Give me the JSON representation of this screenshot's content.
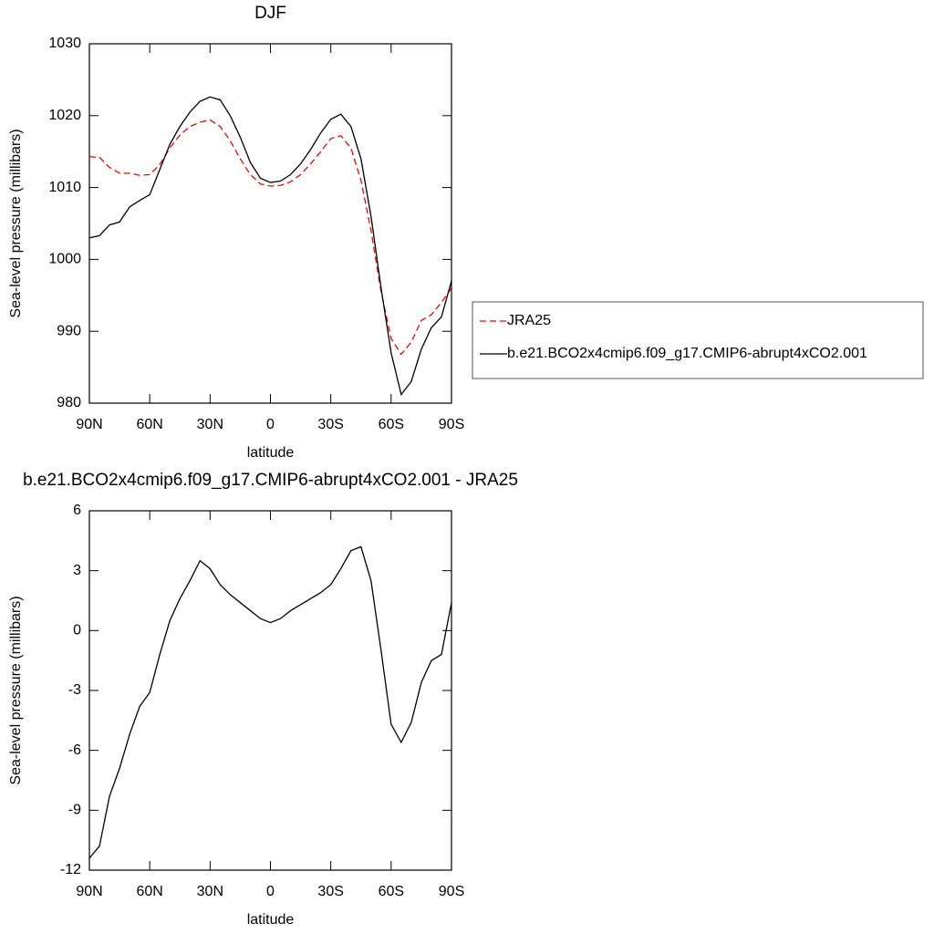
{
  "chart_data": [
    {
      "type": "line",
      "title": "DJF",
      "xlabel": "latitude",
      "ylabel": "Sea-level pressure (millibars)",
      "x": [
        90,
        85,
        80,
        75,
        70,
        65,
        60,
        55,
        50,
        45,
        40,
        35,
        30,
        25,
        20,
        15,
        10,
        5,
        0,
        -5,
        -10,
        -15,
        -20,
        -25,
        -30,
        -35,
        -40,
        -45,
        -50,
        -55,
        -60,
        -65,
        -70,
        -75,
        -80,
        -85,
        -90
      ],
      "series": [
        {
          "name": "JRA25",
          "color": "#ff0000",
          "style": "dashed",
          "values": [
            1014.3,
            1014.2,
            1012.8,
            1012,
            1012,
            1011.7,
            1011.8,
            1013.2,
            1015.5,
            1017.3,
            1018.5,
            1019.1,
            1019.4,
            1018.5,
            1016.5,
            1014,
            1011.8,
            1010.5,
            1010.2,
            1010.3,
            1010.8,
            1011.8,
            1013.3,
            1015,
            1016.8,
            1017.2,
            1015.5,
            1011,
            1004,
            995.5,
            989,
            986.8,
            988.5,
            991.5,
            992.3,
            994,
            996
          ]
        },
        {
          "name": "b.e21.BCO2x4cmip6.f09_g17.CMIP6-abrupt4xCO2.001",
          "color": "#000000",
          "style": "solid",
          "values": [
            1003,
            1003.3,
            1004.8,
            1005.2,
            1007.3,
            1008.2,
            1009,
            1012.5,
            1016,
            1018.5,
            1020.5,
            1022,
            1022.6,
            1022.2,
            1020,
            1017,
            1013.5,
            1011.3,
            1010.7,
            1010.9,
            1011.8,
            1013.3,
            1015.3,
            1017.6,
            1019.5,
            1020.2,
            1018.5,
            1014,
            1006,
            996,
            987,
            981.2,
            983,
            987.5,
            990.5,
            992,
            997
          ]
        }
      ],
      "xlim": [
        90,
        -90
      ],
      "xticks": [
        {
          "value": 90,
          "label": "90N"
        },
        {
          "value": 60,
          "label": "60N"
        },
        {
          "value": 30,
          "label": "30N"
        },
        0,
        {
          "value": -30,
          "label": "30S"
        },
        {
          "value": -60,
          "label": "60S"
        },
        {
          "value": -90,
          "label": "90S"
        }
      ],
      "ylim": [
        980,
        1030
      ],
      "yticks": [
        980,
        990,
        1000,
        1010,
        1020,
        1030
      ],
      "legend": "right"
    },
    {
      "type": "line",
      "title": "b.e21.BCO2x4cmip6.f09_g17.CMIP6-abrupt4xCO2.001 - JRA25",
      "xlabel": "latitude",
      "ylabel": "Sea-level pressure (millibars)",
      "x": [
        90,
        85,
        80,
        75,
        70,
        65,
        60,
        55,
        50,
        45,
        40,
        35,
        30,
        25,
        20,
        15,
        10,
        5,
        0,
        -5,
        -10,
        -15,
        -20,
        -25,
        -30,
        -35,
        -40,
        -45,
        -50,
        -55,
        -60,
        -65,
        -70,
        -75,
        -80,
        -85,
        -90
      ],
      "values": [
        -11.4,
        -10.8,
        -8.3,
        -6.9,
        -5.2,
        -3.8,
        -3.1,
        -1.2,
        0.5,
        1.6,
        2.5,
        3.5,
        3.1,
        2.3,
        1.8,
        1.4,
        1.0,
        0.6,
        0.4,
        0.6,
        1.0,
        1.3,
        1.6,
        1.9,
        2.3,
        3.1,
        4.0,
        4.2,
        2.5,
        -1,
        -4.7,
        -5.6,
        -4.6,
        -2.6,
        -1.5,
        -1.2,
        1.4
      ],
      "color": "#000000",
      "xlim": [
        90,
        -90
      ],
      "xticks": [
        {
          "value": 90,
          "label": "90N"
        },
        {
          "value": 60,
          "label": "60N"
        },
        {
          "value": 30,
          "label": "30N"
        },
        0,
        {
          "value": -30,
          "label": "30S"
        },
        {
          "value": -60,
          "label": "60S"
        },
        {
          "value": -90,
          "label": "90S"
        }
      ],
      "ylim": [
        -12,
        6
      ],
      "yticks": [
        -12,
        -9,
        -6,
        -3,
        0,
        3,
        6
      ]
    }
  ]
}
